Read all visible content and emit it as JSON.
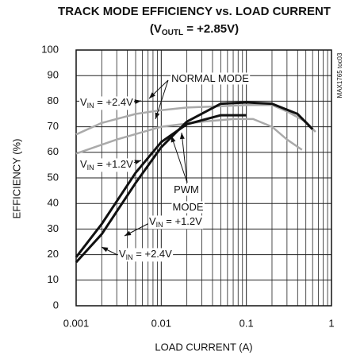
{
  "chart_data": {
    "type": "line",
    "title": "TRACK MODE EFFICIENCY vs. LOAD CURRENT",
    "subtitle": {
      "pre": "(V",
      "sub": "OUTL",
      "post": " = +2.85V)"
    },
    "side_note": "MAX1765 toc03",
    "xlabel": "LOAD CURRENT (A)",
    "ylabel": "EFFICIENCY (%)",
    "xscale": "log",
    "xlim": [
      0.001,
      1
    ],
    "xticks": [
      0.001,
      0.01,
      0.1,
      1
    ],
    "x_minor_ticks": [
      0.002,
      0.003,
      0.004,
      0.005,
      0.006,
      0.007,
      0.008,
      0.009,
      0.02,
      0.03,
      0.04,
      0.05,
      0.06,
      0.07,
      0.08,
      0.09,
      0.2,
      0.3,
      0.4,
      0.5,
      0.6,
      0.7,
      0.8,
      0.9
    ],
    "ylim": [
      0,
      100
    ],
    "yticks": [
      0,
      10,
      20,
      30,
      40,
      50,
      60,
      70,
      80,
      90,
      100
    ],
    "grid": true,
    "series": [
      {
        "color": "#aaaaaa",
        "x": [
          0.001,
          0.002,
          0.005,
          0.01,
          0.02,
          0.05,
          0.1,
          0.2,
          0.3,
          0.5,
          0.65
        ],
        "values": [
          67,
          71.5,
          75,
          76.5,
          77.5,
          78,
          78.5,
          78.5,
          76,
          72,
          68
        ]
      },
      {
        "color": "#aaaaaa",
        "x": [
          0.001,
          0.003,
          0.01,
          0.03,
          0.07,
          0.12,
          0.2,
          0.3,
          0.45
        ],
        "values": [
          59.5,
          65,
          70,
          72,
          73,
          73,
          70,
          65,
          61
        ]
      },
      {
        "color": "#111111",
        "x": [
          0.001,
          0.002,
          0.005,
          0.01,
          0.02,
          0.05,
          0.1
        ],
        "values": [
          19,
          32,
          52,
          64,
          71,
          74.5,
          74.5
        ]
      },
      {
        "color": "#111111",
        "x": [
          0.001,
          0.002,
          0.005,
          0.01,
          0.02,
          0.05,
          0.1,
          0.2,
          0.4,
          0.6
        ],
        "values": [
          17,
          28,
          48,
          62,
          72,
          79,
          79.5,
          79,
          75,
          69
        ]
      }
    ],
    "annotations": [
      {
        "pre": "NORMAL MODE"
      },
      {
        "pre": "V",
        "sub": "IN",
        "post": " = +2.4V"
      },
      {
        "pre": "V",
        "sub": "IN",
        "post": " = +1.2V"
      },
      {
        "pre": "PWM"
      },
      {
        "pre": "MODE"
      },
      {
        "pre": "V",
        "sub": "IN",
        "post": " = +1.2V"
      },
      {
        "pre": "V",
        "sub": "IN",
        "post": " = +2.4V"
      }
    ]
  }
}
